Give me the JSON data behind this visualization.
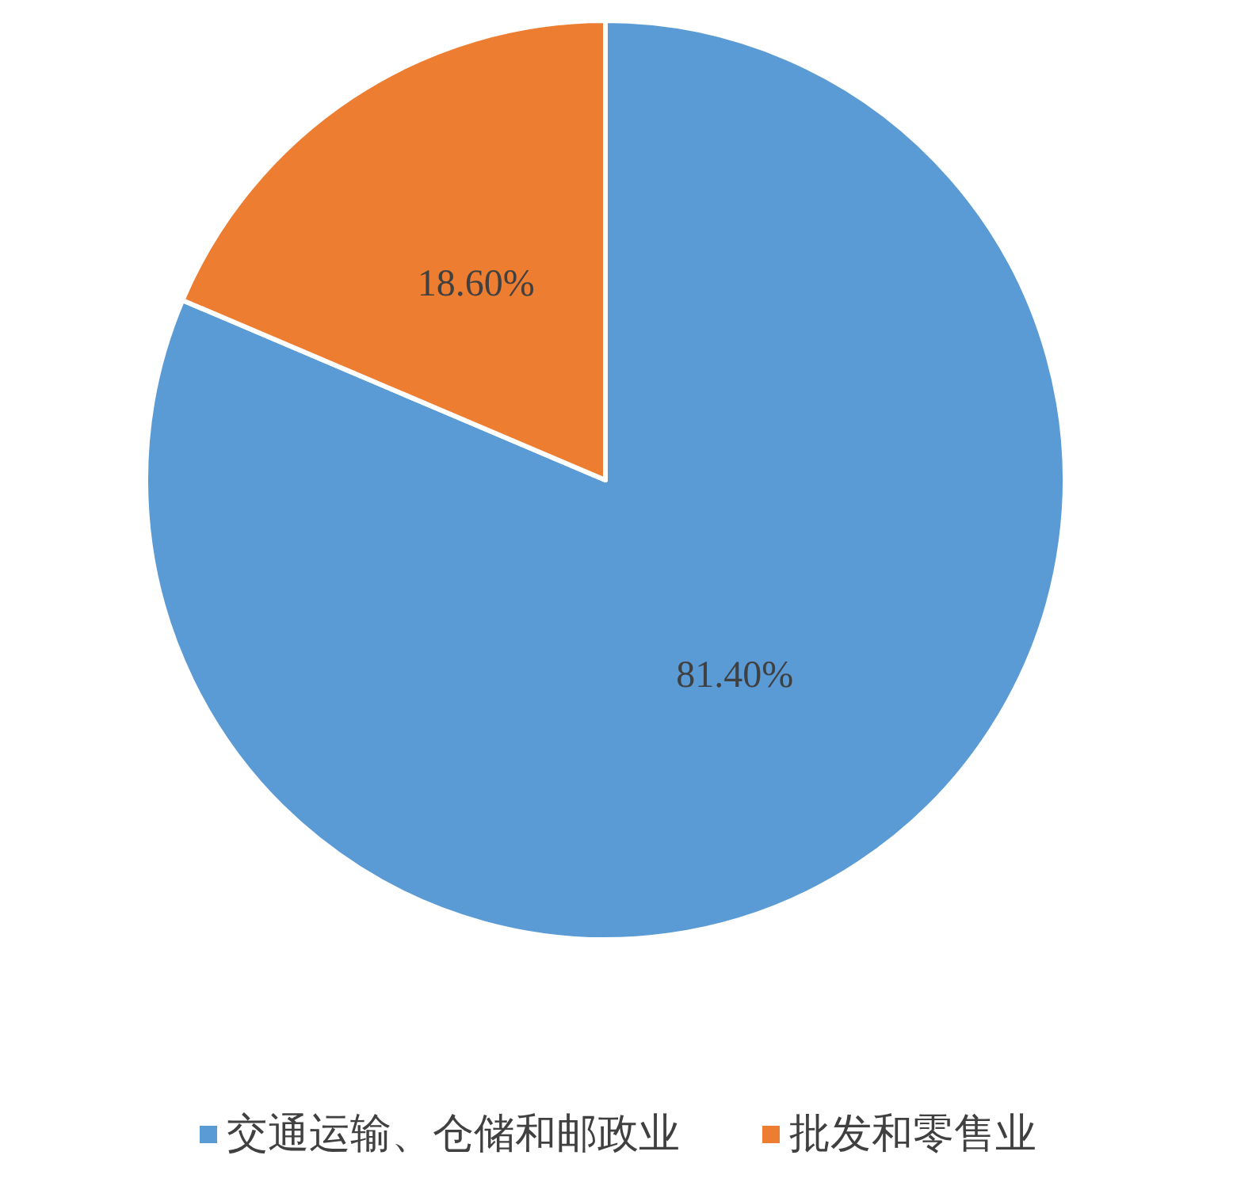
{
  "chart_data": {
    "type": "pie",
    "categories": [
      "交通运输、仓储和邮政业",
      "批发和零售业"
    ],
    "values": [
      81.4,
      18.6
    ],
    "colors": [
      "#5b9bd5",
      "#ed7d31"
    ],
    "value_labels": [
      "81.40%",
      "18.60%"
    ],
    "legend": "bottom"
  }
}
